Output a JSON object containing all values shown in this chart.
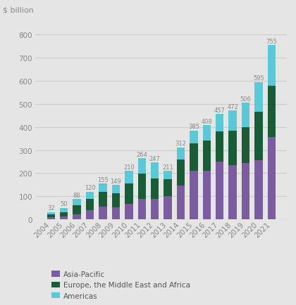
{
  "years": [
    "2004",
    "2005",
    "2006",
    "2007",
    "2008",
    "2009",
    "2010",
    "2011",
    "2012",
    "2013",
    "2014",
    "2015",
    "2016",
    "2017",
    "2018",
    "2019",
    "2020",
    "2021"
  ],
  "totals": [
    32,
    50,
    88,
    120,
    155,
    149,
    210,
    264,
    247,
    211,
    312,
    385,
    408,
    457,
    472,
    506,
    595,
    755
  ],
  "asia_pacific": [
    10,
    14,
    22,
    40,
    55,
    52,
    68,
    88,
    88,
    100,
    148,
    210,
    210,
    250,
    235,
    245,
    255,
    355
  ],
  "emea": [
    12,
    18,
    40,
    48,
    65,
    60,
    88,
    110,
    88,
    73,
    110,
    120,
    130,
    130,
    150,
    155,
    210,
    225
  ],
  "americas": [
    10,
    18,
    26,
    32,
    35,
    37,
    54,
    66,
    71,
    38,
    54,
    55,
    68,
    77,
    87,
    106,
    130,
    175
  ],
  "color_asia": "#7b5c9e",
  "color_emea": "#1a5c38",
  "color_americas": "#5bc8d5",
  "background_color": "#e5e5e5",
  "grid_color": "#cccccc",
  "ylabel_text": "$ billion",
  "ylim": [
    0,
    860
  ],
  "yticks": [
    0,
    100,
    200,
    300,
    400,
    500,
    600,
    700,
    800
  ],
  "legend_labels": [
    "Asia-Pacific",
    "Europe, the Middle East and Africa",
    "Americas"
  ],
  "label_color": "#888888",
  "bar_label_color": "#888888"
}
